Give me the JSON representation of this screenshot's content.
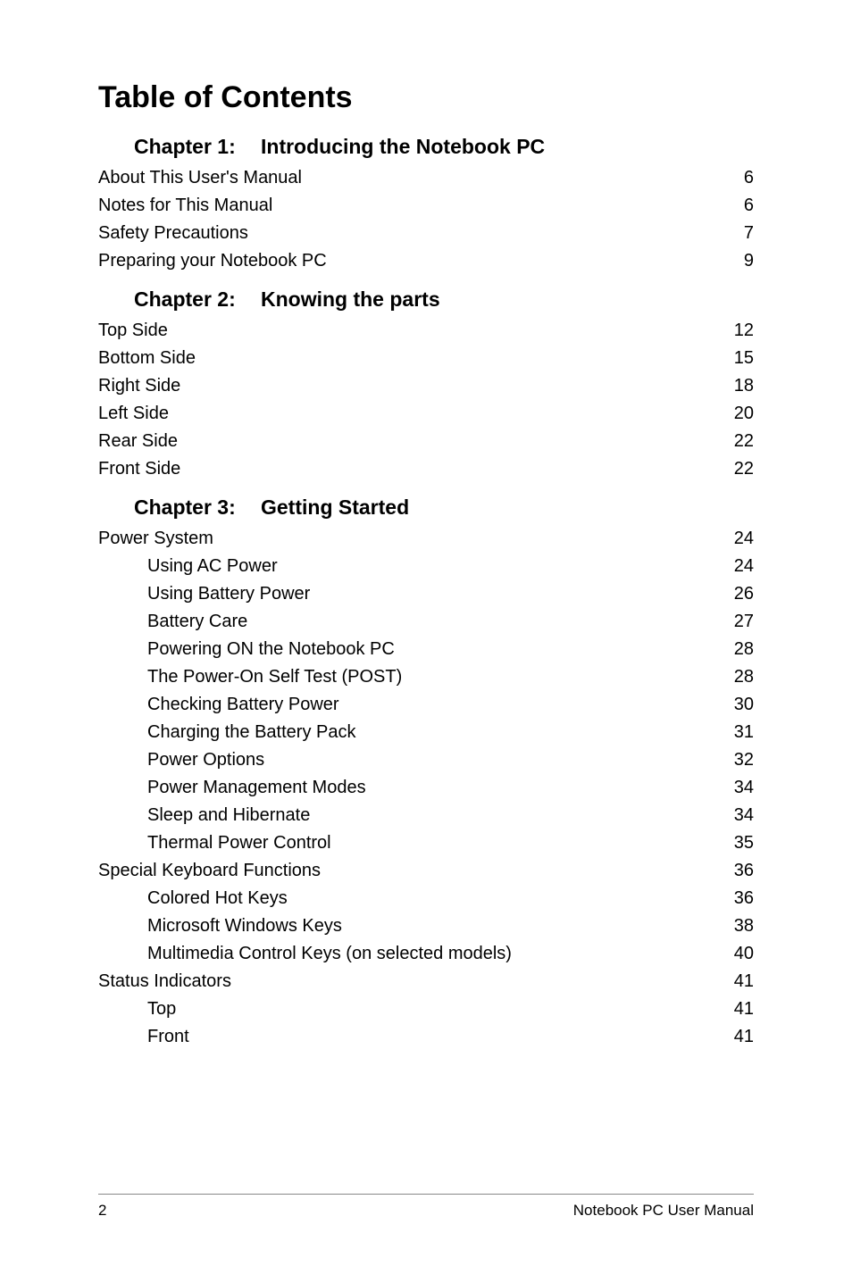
{
  "title": "Table of Contents",
  "footer": {
    "page_number": "2",
    "doc_title": "Notebook PC User Manual"
  },
  "colors": {
    "text": "#000000",
    "background": "#ffffff",
    "footer_rule": "#888888"
  },
  "typography": {
    "title_pt": 34,
    "chapter_pt": 23,
    "body_pt": 20,
    "footer_pt": 17,
    "font_family": "Segoe UI / Myriad Pro"
  },
  "chapters": [
    {
      "label": "Chapter 1:",
      "title": "Introducing the Notebook PC",
      "entries": [
        {
          "level": 0,
          "label": "About This User's Manual",
          "page": "6"
        },
        {
          "level": 0,
          "label": "Notes for This Manual",
          "page": "6"
        },
        {
          "level": 0,
          "label": "Safety Precautions",
          "page": "7"
        },
        {
          "level": 0,
          "label": "Preparing your Notebook PC",
          "page": "9"
        }
      ]
    },
    {
      "label": "Chapter 2:",
      "title": "Knowing the parts",
      "entries": [
        {
          "level": 0,
          "label": "Top Side",
          "page": "12"
        },
        {
          "level": 0,
          "label": "Bottom Side",
          "page": "15"
        },
        {
          "level": 0,
          "label": "Right Side",
          "page": "18"
        },
        {
          "level": 0,
          "label": "Left Side",
          "page": "20"
        },
        {
          "level": 0,
          "label": "Rear Side",
          "page": "22"
        },
        {
          "level": 0,
          "label": "Front Side",
          "page": "22"
        }
      ]
    },
    {
      "label": "Chapter 3:",
      "title": "Getting Started",
      "entries": [
        {
          "level": 0,
          "label": "Power System",
          "page": "24"
        },
        {
          "level": 1,
          "label": "Using AC Power",
          "page": "24"
        },
        {
          "level": 1,
          "label": "Using Battery Power",
          "page": "26"
        },
        {
          "level": 1,
          "label": "Battery Care",
          "page": "27"
        },
        {
          "level": 1,
          "label": "Powering ON the Notebook PC",
          "page": "28"
        },
        {
          "level": 1,
          "label": "The Power-On Self Test (POST)",
          "page": "28"
        },
        {
          "level": 1,
          "label": "Checking Battery Power",
          "page": "30"
        },
        {
          "level": 1,
          "label": "Charging the Battery Pack",
          "page": "31"
        },
        {
          "level": 1,
          "label": "Power Options",
          "page": "32"
        },
        {
          "level": 1,
          "label": "Power Management Modes",
          "page": "34"
        },
        {
          "level": 1,
          "label": "Sleep and Hibernate",
          "page": "34"
        },
        {
          "level": 1,
          "label": "Thermal Power Control",
          "page": "35"
        },
        {
          "level": 0,
          "label": "Special Keyboard Functions",
          "page": "36"
        },
        {
          "level": 1,
          "label": "Colored Hot Keys",
          "page": "36"
        },
        {
          "level": 1,
          "label": "Microsoft Windows Keys",
          "page": "38"
        },
        {
          "level": 1,
          "label": "Multimedia Control Keys (on selected models)",
          "page": "40"
        },
        {
          "level": 0,
          "label": "Status Indicators",
          "page": "41"
        },
        {
          "level": 2,
          "prefix": "Top",
          "label": "",
          "page": "41"
        },
        {
          "level": 2,
          "prefix": "Front",
          "label": "",
          "page": "41"
        }
      ]
    }
  ]
}
